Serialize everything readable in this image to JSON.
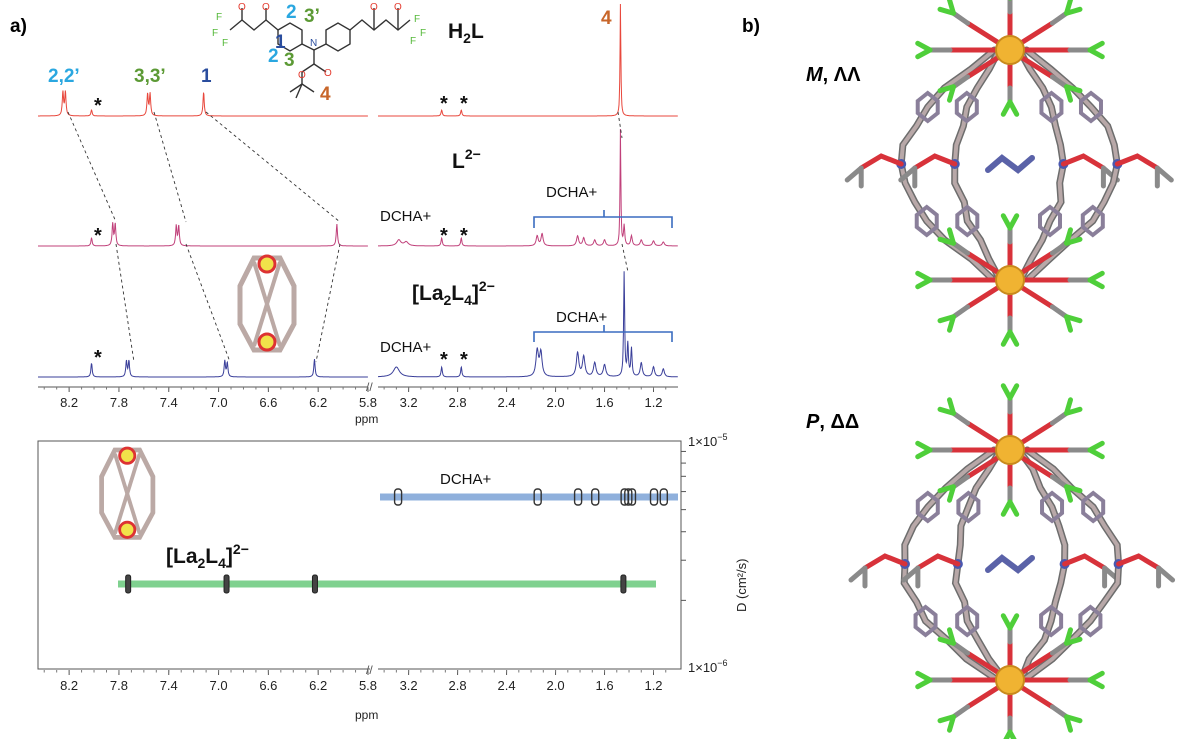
{
  "panel_a": {
    "label": "a)",
    "spectra": [
      {
        "id": "h2l",
        "name": "H2L",
        "name_main": "H",
        "name_sub": "2",
        "name_end": "L",
        "color": "#e8473c"
      },
      {
        "id": "l2",
        "name": "L2−",
        "name_main": "L",
        "name_sup": "2−",
        "color": "#c0407a"
      },
      {
        "id": "la2l4",
        "name": "[La2L4]2−",
        "color": "#3a3f9a"
      }
    ],
    "assignments_top": [
      {
        "text": "2,2’",
        "color": "#2aa7e0"
      },
      {
        "text": "3,3’",
        "color": "#5c9a35"
      },
      {
        "text": "1",
        "color": "#2a4d9e"
      },
      {
        "text": "4",
        "color": "#c8662a"
      }
    ],
    "structure_labels": [
      {
        "text": "1",
        "color": "#2a4d9e"
      },
      {
        "text": "2",
        "color": "#2aa7e0"
      },
      {
        "text": "3’",
        "color": "#5c9a35"
      },
      {
        "text": "2",
        "color": "#2aa7e0"
      },
      {
        "text": "3",
        "color": "#5c9a35"
      },
      {
        "text": "4",
        "color": "#c8662a"
      }
    ],
    "structure_atoms": [
      "O",
      "O",
      "O",
      "O",
      "F",
      "F",
      "F",
      "F",
      "F",
      "F",
      "N",
      "O",
      "O"
    ],
    "dcha_label": "DCHA+",
    "star": "*",
    "ppm_ticks_left": [
      "8.2",
      "7.8",
      "7.4",
      "7.0",
      "6.6",
      "6.2",
      "5.8"
    ],
    "ppm_ticks_right": [
      "3.2",
      "2.8",
      "2.4",
      "2.0",
      "1.6",
      "1.2"
    ],
    "ppm_label": "ppm"
  },
  "dosy": {
    "y_top": "1×10",
    "y_top_exp": "−5",
    "y_bottom": "1×10",
    "y_bottom_exp": "−6",
    "ylabel": "D (cm²/s)",
    "series": [
      {
        "name": "DCHA+",
        "color": "#8fb0dc"
      },
      {
        "name": "[La2L4]2−",
        "color": "#7fd18f"
      }
    ],
    "ppm_ticks_left": [
      "8.2",
      "7.8",
      "7.4",
      "7.0",
      "6.6",
      "6.2",
      "5.8"
    ],
    "ppm_ticks_right": [
      "3.2",
      "2.8",
      "2.4",
      "2.0",
      "1.6",
      "1.2"
    ],
    "ppm_label": "ppm"
  },
  "panel_b": {
    "label": "b)",
    "top_label_italic": "M",
    "top_label_rest": ", ΛΛ",
    "bottom_label_italic": "P",
    "bottom_label_rest": ", ΔΔ"
  }
}
